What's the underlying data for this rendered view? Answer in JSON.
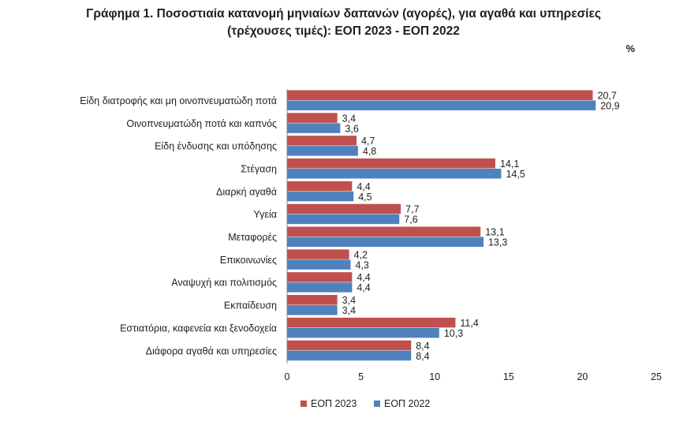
{
  "title": {
    "line1": "Γράφημα 1. Ποσοστιαία κατανομή μηνιαίων δαπανών (αγορές), για αγαθά και υπηρεσίες",
    "line2": "(τρέχουσες τιμές): ΕΟΠ 2023 - ΕΟΠ 2022"
  },
  "unit_label": "%",
  "chart_data": {
    "type": "bar",
    "orientation": "horizontal",
    "title": "Γράφημα 1. Ποσοστιαία κατανομή μηνιαίων δαπανών (αγορές), για αγαθά και υπηρεσίες (τρέχουσες τιμές): ΕΟΠ 2023 - ΕΟΠ 2022",
    "categories": [
      "Είδη διατροφής και μη οινοπνευματώδη ποτά",
      "Οινοπνευματώδη ποτά και καπνός",
      "Είδη ένδυσης και υπόδησης",
      "Στέγαση",
      "Διαρκή αγαθά",
      "Υγεία",
      "Μεταφορές",
      "Επικοινωνίες",
      "Αναψυχή και πολιτισμός",
      "Εκπαίδευση",
      "Εστιατόρια, καφενεία  και ξενοδοχεία",
      "Διάφορα αγαθά και υπηρεσίες"
    ],
    "series": [
      {
        "name": "ΕΟΠ 2023",
        "color": "#c0504d",
        "values": [
          20.7,
          3.4,
          4.7,
          14.1,
          4.4,
          7.7,
          13.1,
          4.2,
          4.4,
          3.4,
          11.4,
          8.4
        ],
        "labels": [
          "20,7",
          "3,4",
          "4,7",
          "14,1",
          "4,4",
          "7,7",
          "13,1",
          "4,2",
          "4,4",
          "3,4",
          "11,4",
          "8,4"
        ]
      },
      {
        "name": "ΕΟΠ 2022",
        "color": "#4f81bd",
        "values": [
          20.9,
          3.6,
          4.8,
          14.5,
          4.5,
          7.6,
          13.3,
          4.3,
          4.4,
          3.4,
          10.3,
          8.4
        ],
        "labels": [
          "20,9",
          "3,6",
          "4,8",
          "14,5",
          "4,5",
          "7,6",
          "13,3",
          "4,3",
          "4,4",
          "3,4",
          "10,3",
          "8,4"
        ]
      }
    ],
    "xlim": [
      0,
      25
    ],
    "xticks": [
      0,
      5,
      10,
      15,
      20,
      25
    ],
    "xticklabels": [
      "0",
      "5",
      "10",
      "15",
      "20",
      "25"
    ],
    "grid": false,
    "legend_position": "bottom"
  }
}
